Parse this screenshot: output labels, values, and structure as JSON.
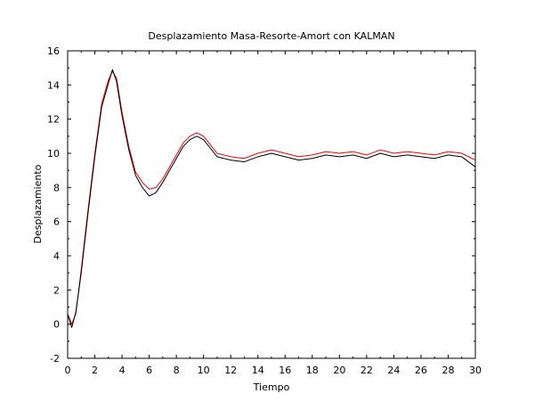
{
  "chart_data": {
    "type": "line",
    "title": "Desplazamiento Masa-Resorte-Amort con KALMAN",
    "xlabel": "Tiempo",
    "ylabel": "Desplazamiento",
    "xlim": [
      0,
      30
    ],
    "ylim": [
      -2,
      16
    ],
    "x_ticks": [
      "0",
      "2",
      "4",
      "6",
      "8",
      "10",
      "12",
      "14",
      "16",
      "18",
      "20",
      "22",
      "24",
      "26",
      "28",
      "30"
    ],
    "y_ticks": [
      "-2",
      "0",
      "2",
      "4",
      "6",
      "8",
      "10",
      "12",
      "14",
      "16"
    ],
    "grid": false,
    "legend": "none",
    "series": [
      {
        "color": "#ff0000",
        "x": [
          0,
          0.3,
          0.6,
          1,
          1.5,
          2,
          2.5,
          3,
          3.3,
          3.6,
          4,
          4.5,
          5,
          5.5,
          6,
          6.5,
          7,
          7.5,
          8,
          8.5,
          9,
          9.5,
          10,
          10.5,
          11,
          12,
          13,
          14,
          15,
          16,
          17,
          18,
          19,
          20,
          21,
          22,
          23,
          24,
          25,
          26,
          27,
          28,
          29,
          30
        ],
        "y": [
          0.6,
          0.0,
          0.6,
          3.2,
          6.7,
          10.0,
          12.9,
          14.3,
          14.8,
          14.4,
          12.4,
          10.4,
          8.9,
          8.3,
          7.9,
          8.0,
          8.5,
          9.2,
          9.9,
          10.6,
          11.0,
          11.2,
          11.0,
          10.5,
          10.0,
          9.8,
          9.7,
          10.0,
          10.2,
          10.0,
          9.8,
          9.9,
          10.1,
          10.0,
          10.1,
          9.9,
          10.2,
          10.0,
          10.1,
          10.0,
          9.9,
          10.1,
          10.0,
          9.6
        ]
      },
      {
        "color": "#000000",
        "x": [
          0,
          0.3,
          0.6,
          1,
          1.5,
          2,
          2.5,
          3,
          3.3,
          3.6,
          4,
          4.5,
          5,
          5.5,
          6,
          6.5,
          7,
          7.5,
          8,
          8.5,
          9,
          9.5,
          10,
          10.5,
          11,
          12,
          13,
          14,
          15,
          16,
          17,
          18,
          19,
          20,
          21,
          22,
          23,
          24,
          25,
          26,
          27,
          28,
          29,
          30
        ],
        "y": [
          0.6,
          -0.2,
          0.7,
          3.0,
          6.5,
          9.8,
          12.7,
          14.1,
          14.9,
          14.2,
          12.2,
          10.2,
          8.7,
          8.0,
          7.5,
          7.7,
          8.3,
          9.0,
          9.7,
          10.4,
          10.8,
          11.0,
          10.8,
          10.3,
          9.8,
          9.6,
          9.5,
          9.8,
          10.0,
          9.8,
          9.6,
          9.7,
          9.9,
          9.8,
          9.9,
          9.7,
          10.0,
          9.8,
          9.9,
          9.8,
          9.7,
          9.9,
          9.8,
          9.2
        ]
      }
    ]
  }
}
